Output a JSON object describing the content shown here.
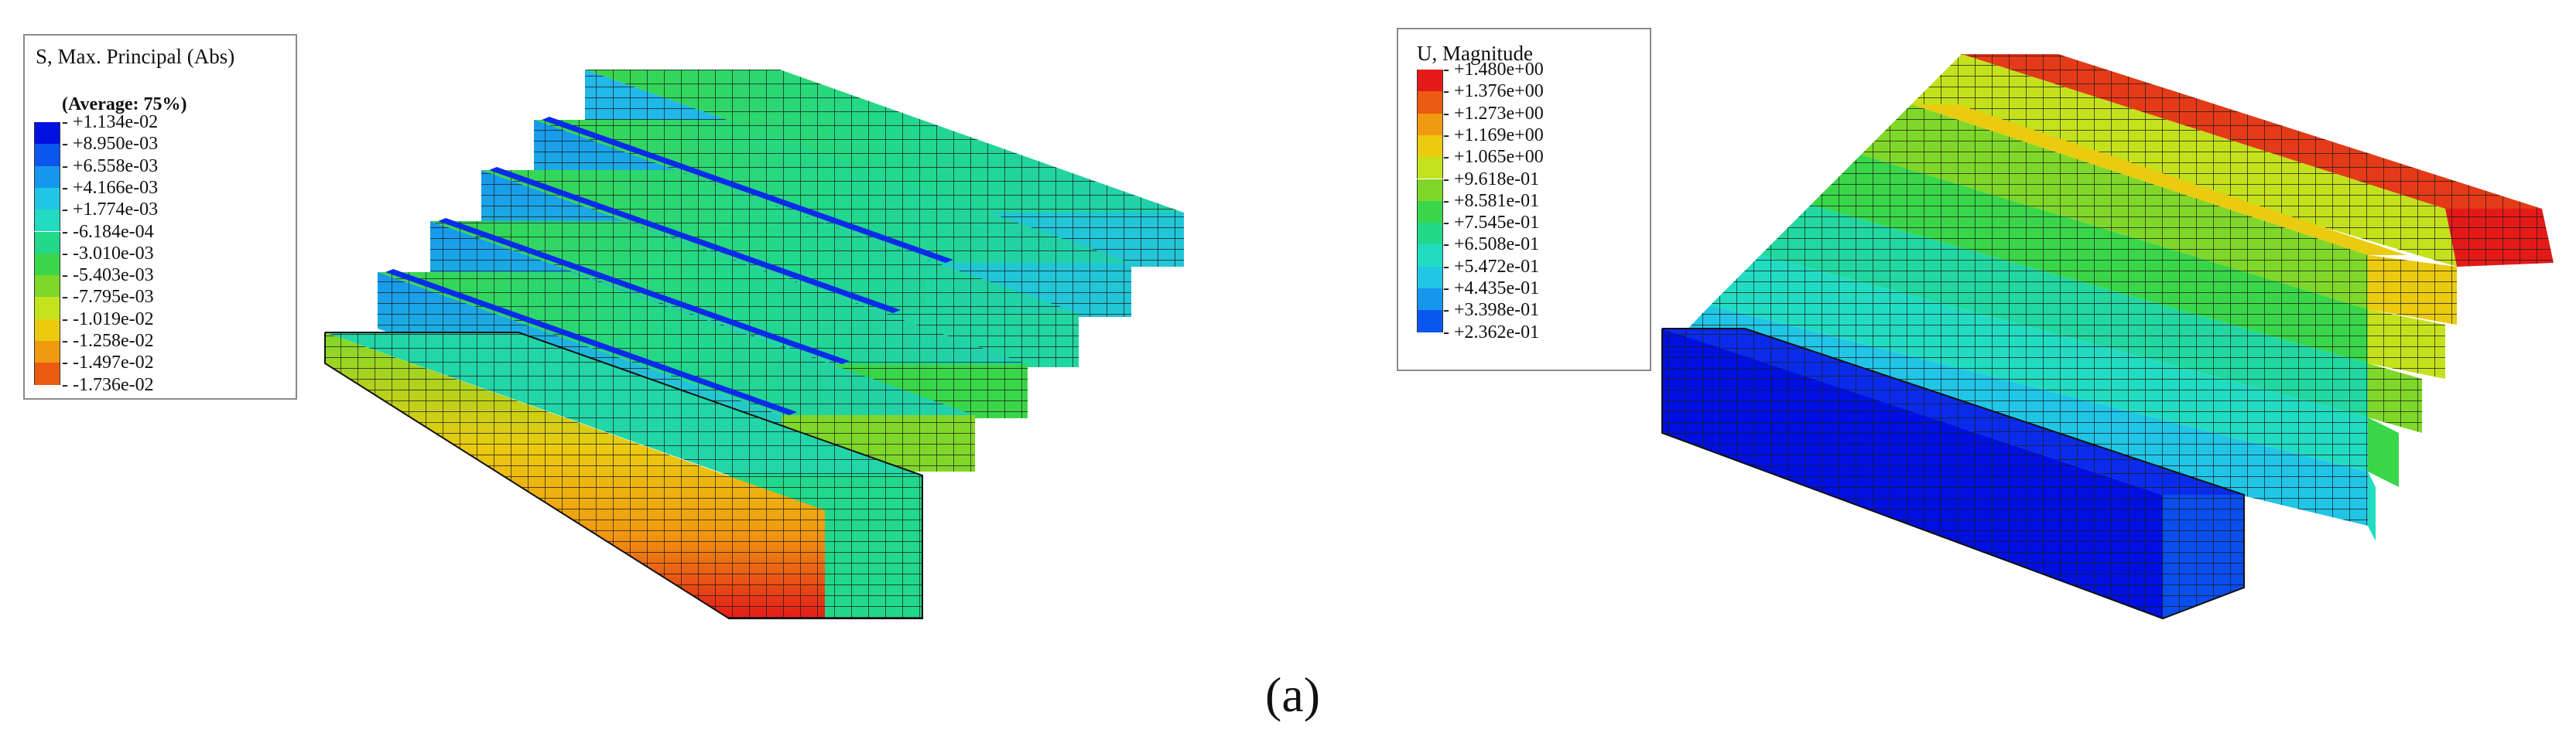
{
  "legend_left": {
    "title": "S, Max. Principal (Abs)",
    "subtitle": "(Average: 75%)",
    "labels": [
      "+1.134e-02",
      "+8.950e-03",
      "+6.558e-03",
      "+4.166e-03",
      "+1.774e-03",
      "-6.184e-04",
      "-3.010e-03",
      "-5.403e-03",
      "-7.795e-03",
      "-1.019e-02",
      "-1.258e-02",
      "-1.497e-02",
      "-1.736e-02"
    ],
    "colors": [
      "#0010e0",
      "#0a56ee",
      "#1796ee",
      "#21c6e6",
      "#22dcc2",
      "#22d88a",
      "#3ad64a",
      "#7fd829",
      "#c4e21c",
      "#eacb10",
      "#f09a10",
      "#ec5a10",
      "#e41a18"
    ]
  },
  "legend_right": {
    "title": "U, Magnitude",
    "labels": [
      "+1.480e+00",
      "+1.376e+00",
      "+1.273e+00",
      "+1.169e+00",
      "+1.065e+00",
      "+9.618e-01",
      "+8.581e-01",
      "+7.545e-01",
      "+6.508e-01",
      "+5.472e-01",
      "+4.435e-01",
      "+3.398e-01",
      "+2.362e-01"
    ],
    "colors": [
      "#e41a18",
      "#ec5a10",
      "#f09a10",
      "#eacb10",
      "#c4e21c",
      "#7fd829",
      "#3ad64a",
      "#22d88a",
      "#22dcc2",
      "#21c6e6",
      "#1796ee",
      "#0a56ee",
      "#0010e0"
    ]
  },
  "caption": "(a)"
}
